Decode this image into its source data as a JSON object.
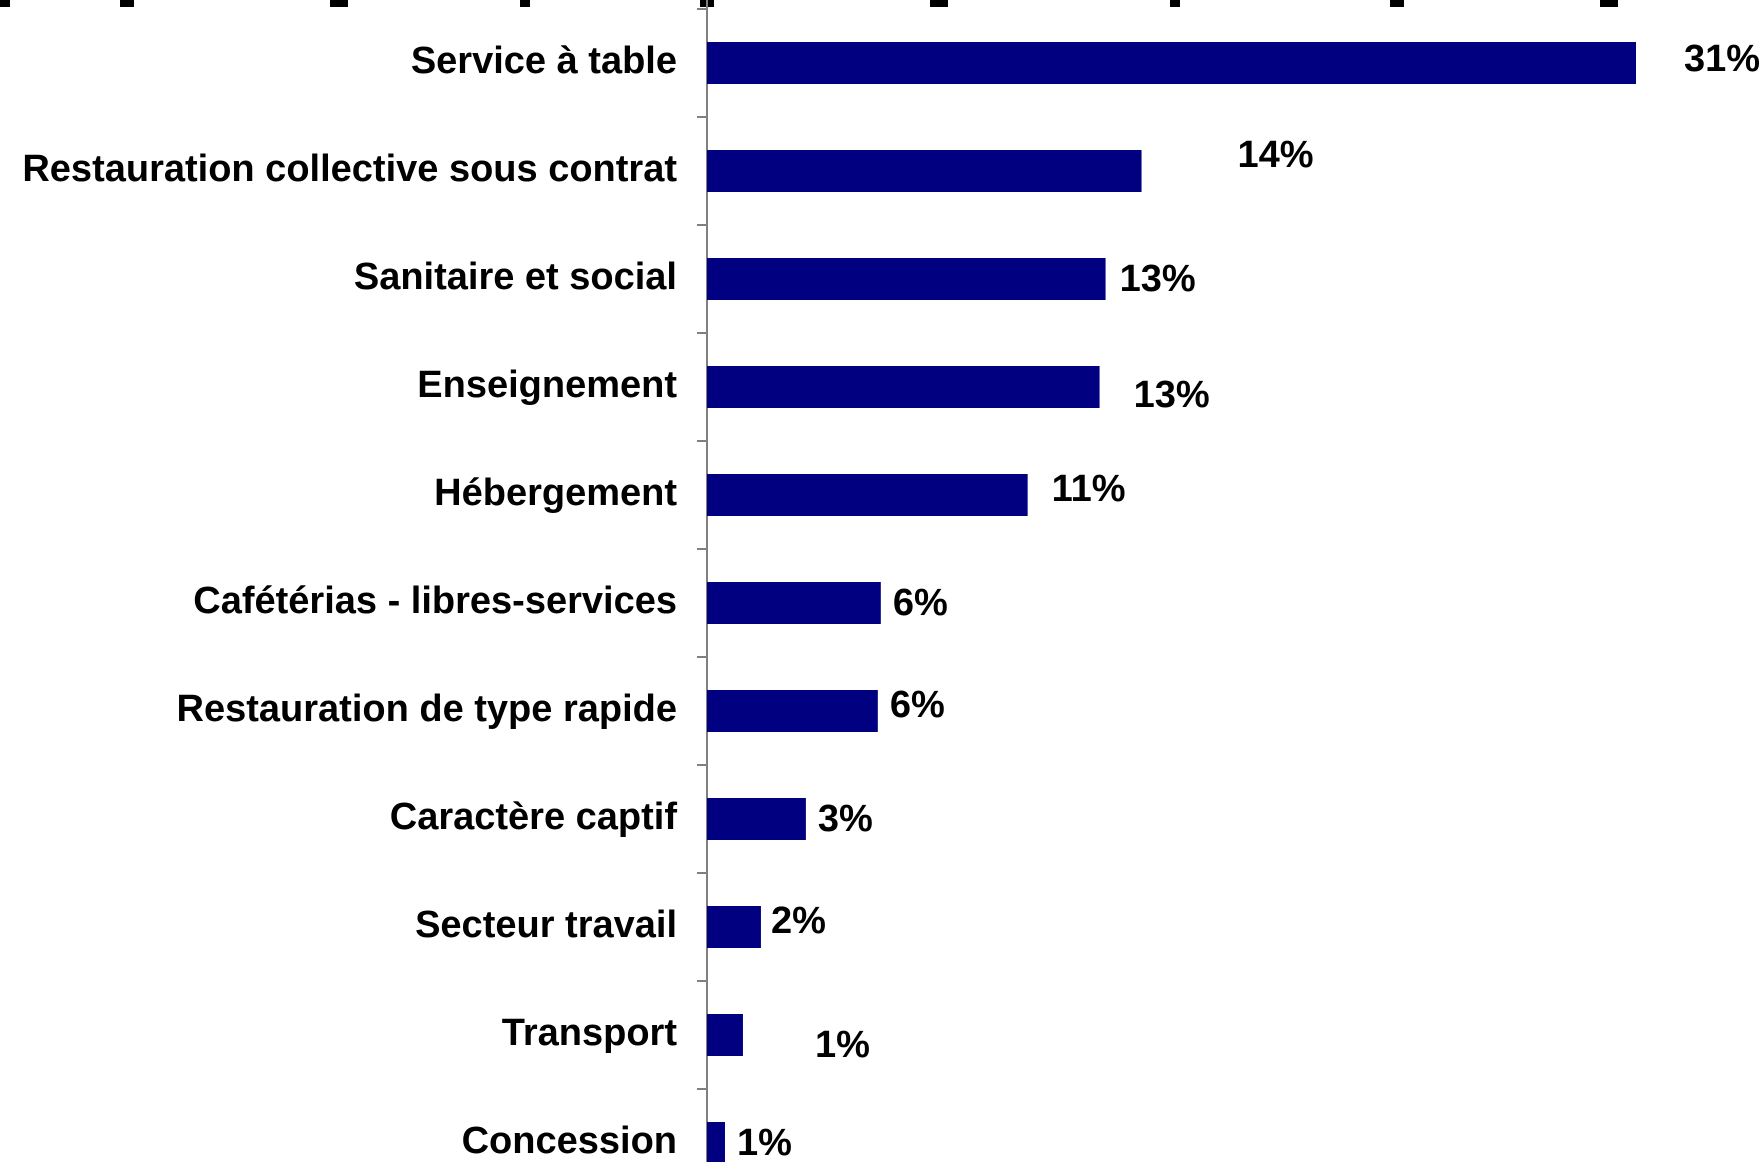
{
  "chart_data": {
    "type": "bar",
    "orientation": "horizontal",
    "categories": [
      "Service à table",
      "Restauration collective sous contrat",
      "Sanitaire et social",
      "Enseignement",
      "Hébergement",
      "Cafétérias - libres-services",
      "Restauration de type rapide",
      "Caractère captif",
      "Secteur travail",
      "Transport",
      "Concession"
    ],
    "values": [
      31,
      14.5,
      13.3,
      13.1,
      10.7,
      5.8,
      5.7,
      3.3,
      1.8,
      1.2,
      0.6
    ],
    "value_labels": [
      "31%",
      "14%",
      "13%",
      "13%",
      "11%",
      "6%",
      "6%",
      "3%",
      "2%",
      "1%",
      "1%"
    ],
    "title": "",
    "xlabel": "",
    "ylabel": "",
    "xlim": [
      0,
      31
    ],
    "grid": false,
    "legend": "none",
    "colors": {
      "bar": "#000080",
      "axis": "#808080",
      "text": "#000000"
    }
  }
}
